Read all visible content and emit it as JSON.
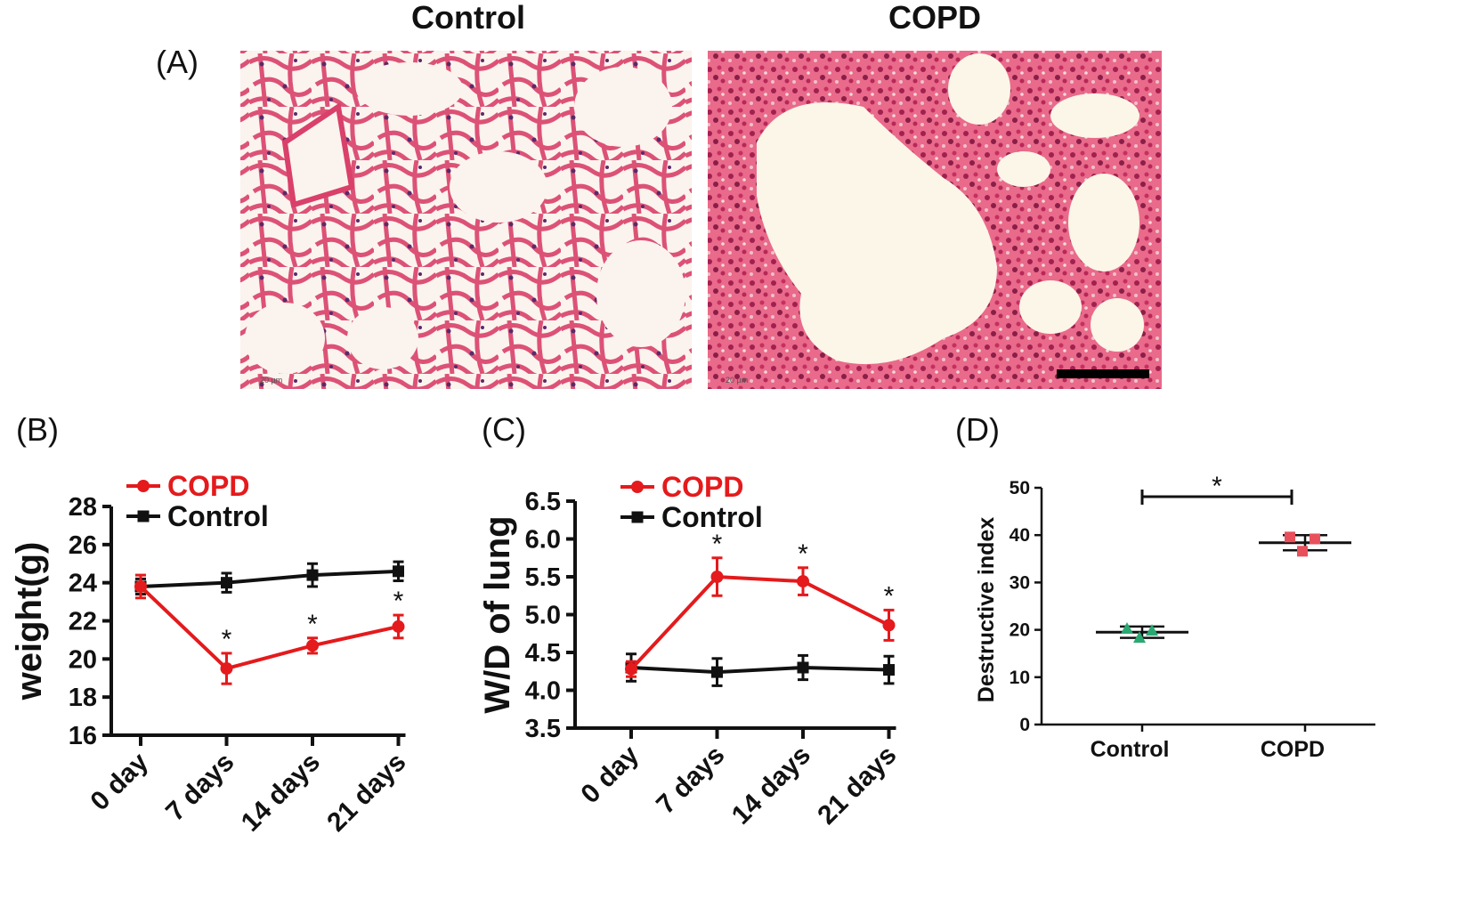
{
  "panel_a": {
    "letter": "(A)",
    "titles": [
      "Control",
      "COPD"
    ],
    "scale_label": "20 µm"
  },
  "colors": {
    "copd": "#e41a1c",
    "control": "#111111",
    "d_control_points": "#2aa872",
    "d_copd_points": "#e8505b",
    "stain_background": "#fbf3ee",
    "stain_tissue": "#d9406a",
    "stain_nuclei": "#5a2a6a"
  },
  "chart_data": [
    {
      "panel": "(B)",
      "type": "line",
      "title": "",
      "xlabel": "",
      "ylabel": "weight(g)",
      "x": [
        "0 day",
        "7 days",
        "14 days",
        "21 days"
      ],
      "ylim": [
        16,
        28
      ],
      "yticks": [
        16,
        18,
        20,
        22,
        24,
        26,
        28
      ],
      "legend": "top-left",
      "series": [
        {
          "name": "COPD",
          "color": "#e41a1c",
          "values": [
            23.8,
            19.5,
            20.7,
            21.7
          ],
          "errors": [
            0.6,
            0.8,
            0.4,
            0.6
          ]
        },
        {
          "name": "Control",
          "color": "#111111",
          "values": [
            23.8,
            24.0,
            24.4,
            24.6
          ],
          "errors": [
            0.4,
            0.5,
            0.6,
            0.5
          ]
        }
      ],
      "annotations": [
        {
          "x": "7 days",
          "text": "*"
        },
        {
          "x": "14 days",
          "text": "*"
        },
        {
          "x": "21 days",
          "text": "*"
        }
      ]
    },
    {
      "panel": "(C)",
      "type": "line",
      "title": "",
      "xlabel": "",
      "ylabel": "W/D of lung",
      "x": [
        "0 day",
        "7 days",
        "14 days",
        "21 days"
      ],
      "ylim": [
        3.5,
        6.5
      ],
      "yticks": [
        3.5,
        4.0,
        4.5,
        5.0,
        5.5,
        6.0,
        6.5
      ],
      "legend": "top-left",
      "series": [
        {
          "name": "COPD",
          "color": "#e41a1c",
          "values": [
            4.28,
            5.5,
            5.44,
            4.86
          ],
          "errors": [
            0.1,
            0.25,
            0.18,
            0.2
          ]
        },
        {
          "name": "Control",
          "color": "#111111",
          "values": [
            4.3,
            4.24,
            4.3,
            4.27
          ],
          "errors": [
            0.18,
            0.18,
            0.16,
            0.18
          ]
        }
      ],
      "annotations": [
        {
          "x": "7 days",
          "text": "*"
        },
        {
          "x": "14 days",
          "text": "*"
        },
        {
          "x": "21 days",
          "text": "*"
        }
      ]
    },
    {
      "panel": "(D)",
      "type": "scatter",
      "title": "",
      "xlabel": "",
      "ylabel": "Destructive index",
      "categories": [
        "Control",
        "COPD"
      ],
      "ylim": [
        0,
        50
      ],
      "yticks": [
        0,
        10,
        20,
        30,
        40,
        50
      ],
      "groups": [
        {
          "name": "Control",
          "color": "#2aa872",
          "points": [
            20.3,
            18.4,
            19.9
          ],
          "mean": 19.5,
          "error": 1.2
        },
        {
          "name": "COPD",
          "color": "#e8505b",
          "points": [
            39.6,
            36.6,
            39.2
          ],
          "mean": 38.4,
          "error": 1.6
        }
      ],
      "significance": {
        "from": "Control",
        "to": "COPD",
        "text": "*"
      }
    }
  ]
}
